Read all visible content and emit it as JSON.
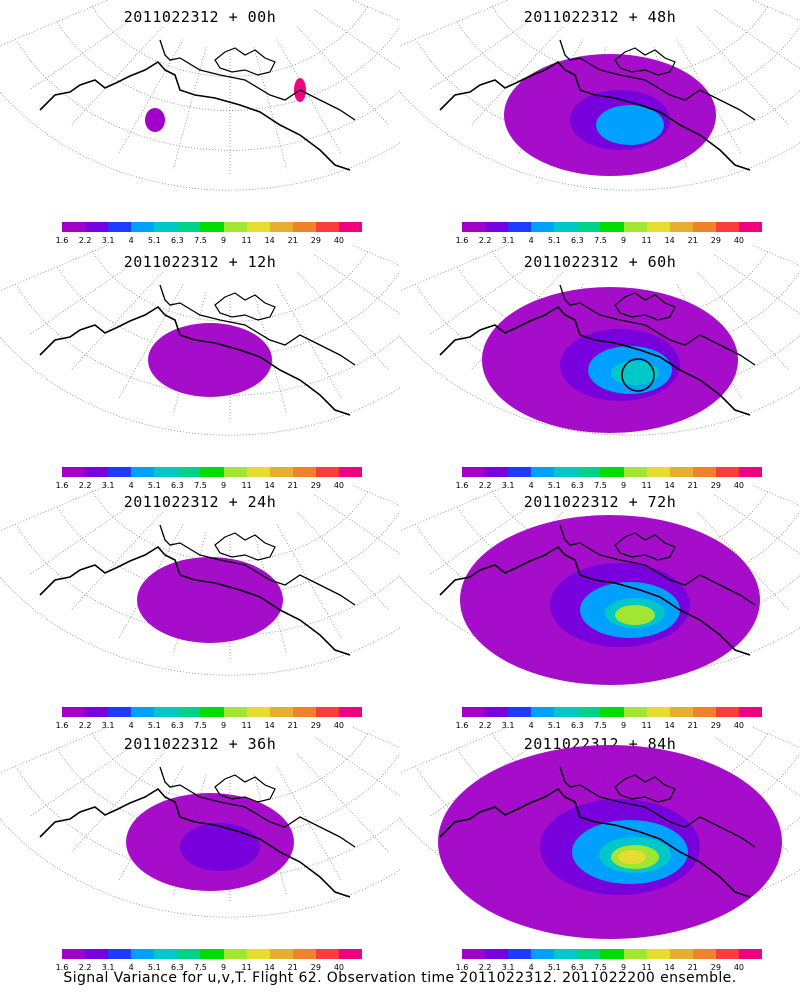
{
  "panels": [
    {
      "title": "2011022312 + 00h",
      "spread": 0
    },
    {
      "title": "2011022312 + 48h",
      "spread": 3,
      "marker": false
    },
    {
      "title": "2011022312 + 12h",
      "spread": 1
    },
    {
      "title": "2011022312 + 60h",
      "spread": 4,
      "marker": true
    },
    {
      "title": "2011022312 + 24h",
      "spread": 1.5
    },
    {
      "title": "2011022312 + 72h",
      "spread": 5
    },
    {
      "title": "2011022312 + 36h",
      "spread": 2
    },
    {
      "title": "2011022312 + 84h",
      "spread": 6
    }
  ],
  "legend": {
    "labels": [
      "1.6",
      "2.2",
      "3.1",
      "4",
      "5.1",
      "6.3",
      "7.5",
      "9",
      "11",
      "14",
      "21",
      "29",
      "40"
    ],
    "colors": [
      "#a000c8",
      "#7800dc",
      "#1e3cff",
      "#00a0ff",
      "#00c8c8",
      "#00d28c",
      "#00dc00",
      "#a0e632",
      "#e6dc32",
      "#e6af2d",
      "#f08228",
      "#fa3c3c",
      "#f00082"
    ]
  },
  "caption": "Signal Variance for u,v,T. Flight 62. Observation time 2011022312. 2011022200 ensemble."
}
